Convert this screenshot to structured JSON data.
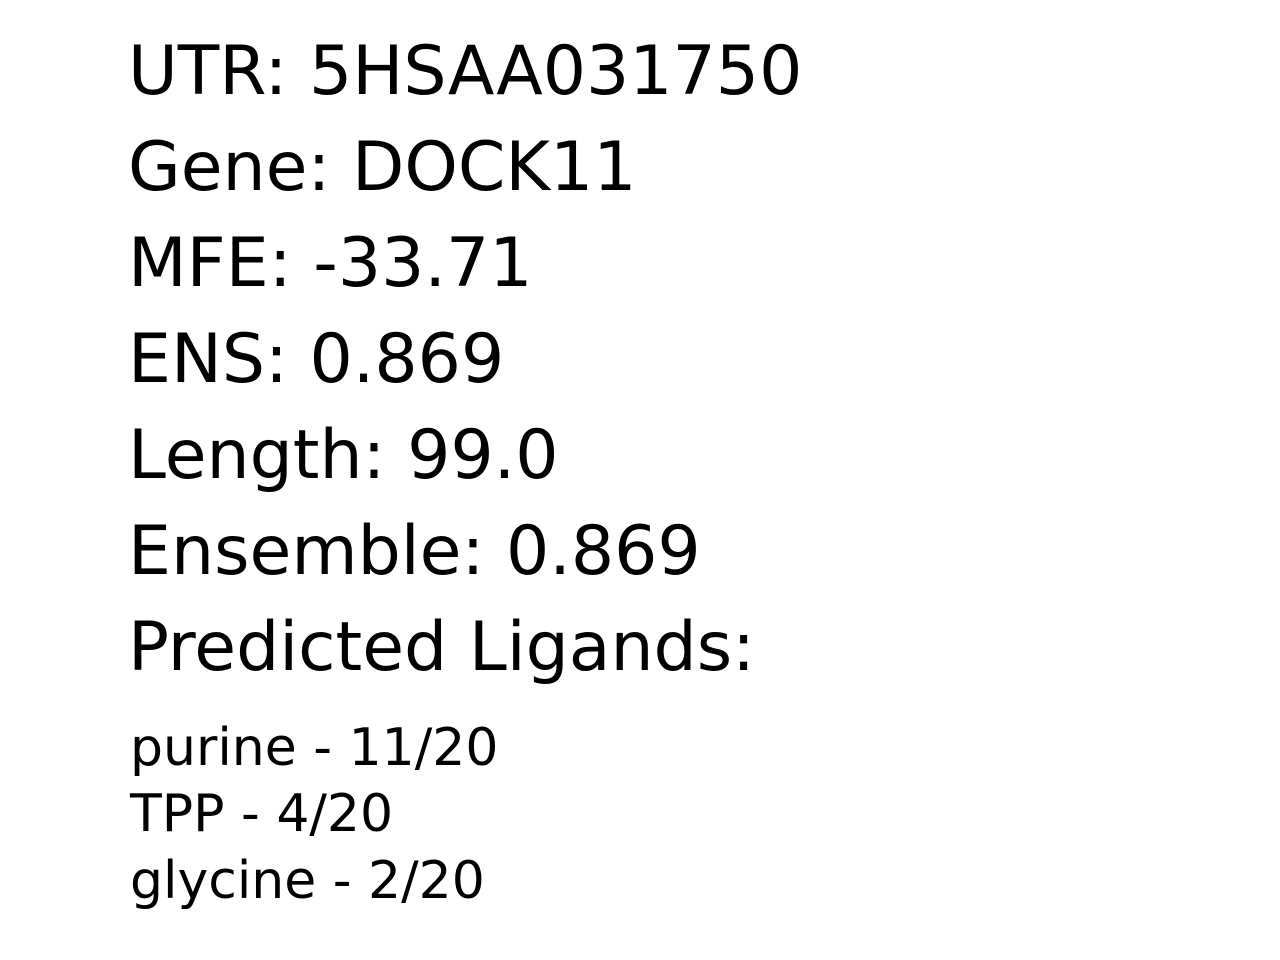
{
  "fields": {
    "utr": {
      "label": "UTR:",
      "value": "5HSAA031750"
    },
    "gene": {
      "label": "Gene:",
      "value": "DOCK11"
    },
    "mfe": {
      "label": "MFE:",
      "value": "-33.71"
    },
    "ens": {
      "label": "ENS:",
      "value": "0.869"
    },
    "length": {
      "label": "Length:",
      "value": "99.0"
    },
    "ensemble": {
      "label": "Ensemble:",
      "value": "0.869"
    }
  },
  "ligands_heading": "Predicted Ligands:",
  "ligands": [
    {
      "name": "purine",
      "score": "11/20"
    },
    {
      "name": "TPP",
      "score": "4/20"
    },
    {
      "name": "glycine",
      "score": "2/20"
    }
  ],
  "separator": "-"
}
